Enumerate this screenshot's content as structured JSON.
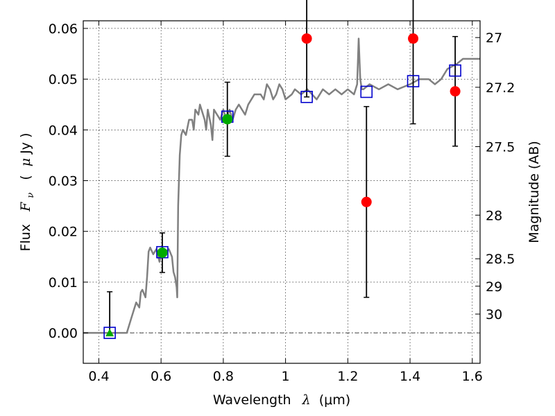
{
  "chart_data": {
    "type": "scatter",
    "xlabel": {
      "text": "Wavelength",
      "symbol": "λ",
      "unit": "(μm)"
    },
    "ylabel": {
      "text": "Flux",
      "symbol": "F",
      "subscript": "ν",
      "unit_open": "(",
      "unit_mu": "μ",
      "unit": "Jy )"
    },
    "y2label": "Magnitude (AB)",
    "xlim": [
      0.35,
      1.625
    ],
    "ylim": [
      -0.006,
      0.0615
    ],
    "xticks": [
      0.4,
      0.6,
      0.8,
      1.0,
      1.2,
      1.4,
      1.6
    ],
    "xtick_labels": [
      "0.4",
      "0.6",
      "0.8",
      "1",
      "1.2",
      "1.4",
      "1.6"
    ],
    "yticks": [
      0.0,
      0.01,
      0.02,
      0.03,
      0.04,
      0.05,
      0.06
    ],
    "ytick_labels": [
      "0.00",
      "0.01",
      "0.02",
      "0.03",
      "0.04",
      "0.05",
      "0.06"
    ],
    "y2ticks": [
      {
        "label": "27",
        "flux": 0.0582
      },
      {
        "label": "27.2",
        "flux": 0.0484
      },
      {
        "label": "27.5",
        "flux": 0.0367
      },
      {
        "label": "28",
        "flux": 0.0232
      },
      {
        "label": "28.5",
        "flux": 0.0146
      },
      {
        "label": "29",
        "flux": 0.0092
      },
      {
        "label": "30",
        "flux": 0.0037
      }
    ],
    "grid": true,
    "zero_line": 0.0,
    "colors": {
      "spectrum": "#808080",
      "model_box": "#0000cc",
      "detection": "#00aa00",
      "upper_limit": "#ff0000",
      "errorbar": "#000000"
    },
    "spectrum": {
      "x": [
        0.35,
        0.46,
        0.475,
        0.49,
        0.505,
        0.52,
        0.53,
        0.535,
        0.54,
        0.55,
        0.555,
        0.56,
        0.565,
        0.575,
        0.585,
        0.595,
        0.6,
        0.605,
        0.615,
        0.625,
        0.635,
        0.64,
        0.645,
        0.65,
        0.652,
        0.655,
        0.66,
        0.665,
        0.67,
        0.68,
        0.69,
        0.7,
        0.705,
        0.71,
        0.72,
        0.725,
        0.73,
        0.74,
        0.745,
        0.75,
        0.76,
        0.765,
        0.77,
        0.78,
        0.79,
        0.8,
        0.805,
        0.81,
        0.82,
        0.83,
        0.84,
        0.85,
        0.86,
        0.87,
        0.88,
        0.9,
        0.92,
        0.93,
        0.94,
        0.95,
        0.96,
        0.97,
        0.98,
        0.99,
        1.0,
        1.02,
        1.03,
        1.05,
        1.07,
        1.1,
        1.12,
        1.14,
        1.16,
        1.18,
        1.2,
        1.22,
        1.23,
        1.235,
        1.24,
        1.245,
        1.25,
        1.27,
        1.3,
        1.33,
        1.36,
        1.4,
        1.43,
        1.46,
        1.48,
        1.5,
        1.52,
        1.55,
        1.57,
        1.6,
        1.625
      ],
      "y": [
        0.0,
        0.0,
        0.0,
        0.0,
        0.003,
        0.006,
        0.005,
        0.008,
        0.0085,
        0.007,
        0.011,
        0.016,
        0.0168,
        0.0155,
        0.0165,
        0.014,
        0.0155,
        0.015,
        0.016,
        0.0165,
        0.015,
        0.012,
        0.011,
        0.009,
        0.007,
        0.025,
        0.035,
        0.039,
        0.04,
        0.039,
        0.042,
        0.042,
        0.04,
        0.044,
        0.043,
        0.045,
        0.044,
        0.042,
        0.04,
        0.044,
        0.041,
        0.038,
        0.044,
        0.043,
        0.042,
        0.044,
        0.043,
        0.042,
        0.044,
        0.042,
        0.044,
        0.045,
        0.044,
        0.043,
        0.045,
        0.047,
        0.047,
        0.046,
        0.049,
        0.048,
        0.046,
        0.047,
        0.049,
        0.048,
        0.046,
        0.047,
        0.048,
        0.047,
        0.048,
        0.046,
        0.048,
        0.047,
        0.048,
        0.047,
        0.048,
        0.047,
        0.049,
        0.058,
        0.05,
        0.048,
        0.048,
        0.049,
        0.048,
        0.049,
        0.048,
        0.049,
        0.05,
        0.05,
        0.049,
        0.05,
        0.052,
        0.053,
        0.054,
        0.054,
        0.054
      ]
    },
    "model_boxes": {
      "x": [
        0.435,
        0.604,
        0.813,
        1.068,
        1.26,
        1.41,
        1.545
      ],
      "y": [
        0.0,
        0.0159,
        0.0426,
        0.0465,
        0.0475,
        0.0496,
        0.0517
      ]
    },
    "detections": {
      "x": [
        0.813,
        0.604
      ],
      "y": [
        0.0421,
        0.0158
      ],
      "yerr_lo": [
        0.0073,
        0.0039
      ],
      "yerr_hi": [
        0.0073,
        0.0039
      ]
    },
    "triangle": {
      "x": [
        0.435
      ],
      "y": [
        0.0
      ],
      "yerr_hi": [
        0.0081
      ]
    },
    "upper_limits": {
      "x": [
        1.068,
        1.26,
        1.41,
        1.545
      ],
      "y": [
        0.058,
        0.0258,
        0.058,
        0.0476
      ],
      "yerr_lo": [
        0.0115,
        0.0188,
        0.0168,
        0.0108
      ],
      "yerr_hi": [
        0.0115,
        0.0188,
        0.0168,
        0.0108
      ]
    }
  }
}
